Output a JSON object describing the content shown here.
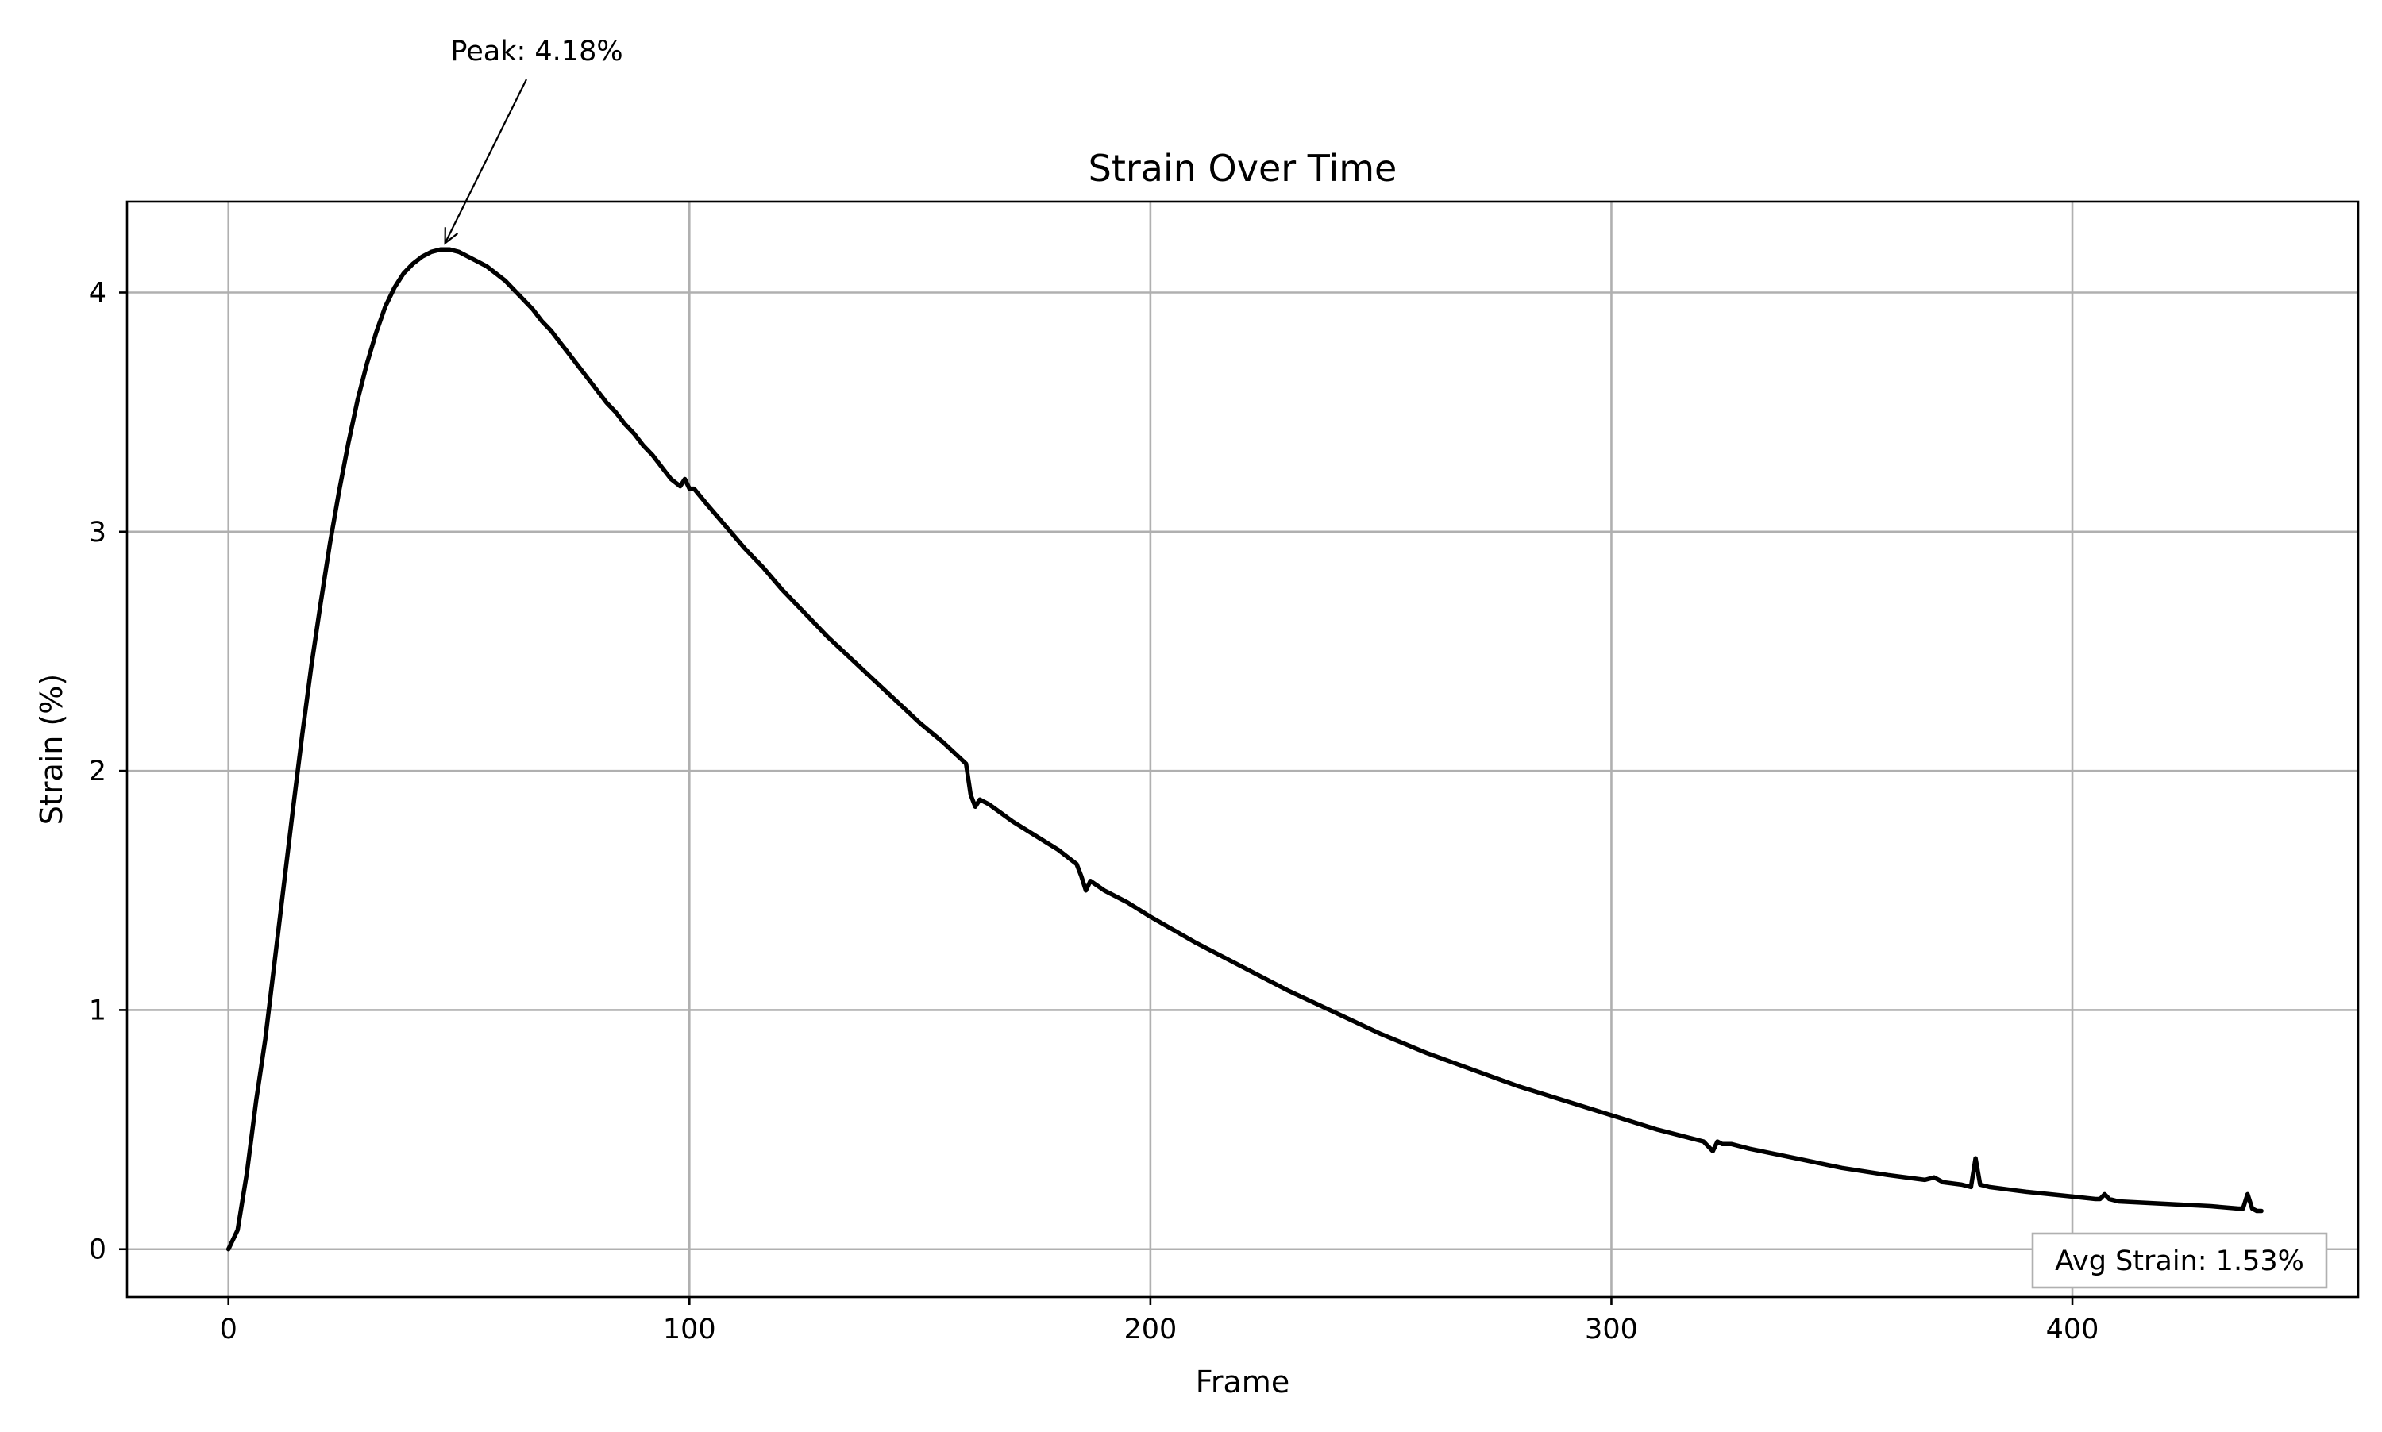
{
  "chart_data": {
    "type": "line",
    "title": "Strain Over Time",
    "xlabel": "Frame",
    "ylabel": "Strain (%)",
    "xlim": [
      -22,
      462
    ],
    "ylim": [
      -0.2,
      4.38
    ],
    "x_ticks": [
      0,
      100,
      200,
      300,
      400
    ],
    "y_ticks": [
      0,
      1,
      2,
      3,
      4
    ],
    "x_tick_labels": [
      "0",
      "100",
      "200",
      "300",
      "400"
    ],
    "y_tick_labels": [
      "0",
      "1",
      "2",
      "3",
      "4"
    ],
    "grid": true,
    "series": [
      {
        "color": "#000000",
        "x": [
          0,
          2,
          4,
          6,
          8,
          10,
          12,
          14,
          16,
          18,
          20,
          22,
          24,
          26,
          28,
          30,
          32,
          34,
          36,
          38,
          40,
          42,
          44,
          46,
          48,
          50,
          52,
          54,
          56,
          58,
          60,
          62,
          64,
          66,
          68,
          70,
          72,
          74,
          76,
          78,
          80,
          82,
          84,
          86,
          88,
          90,
          92,
          94,
          96,
          98,
          99,
          100,
          101,
          104,
          108,
          112,
          116,
          120,
          125,
          130,
          135,
          140,
          145,
          150,
          155,
          160,
          161,
          162,
          163,
          165,
          170,
          175,
          180,
          184,
          185,
          186,
          187,
          190,
          195,
          200,
          210,
          220,
          230,
          240,
          250,
          260,
          270,
          280,
          290,
          300,
          310,
          320,
          322,
          323,
          324,
          326,
          330,
          340,
          350,
          360,
          368,
          370,
          372,
          376,
          378,
          379,
          380,
          382,
          390,
          400,
          405,
          406,
          407,
          408,
          410,
          420,
          430,
          436,
          437,
          438,
          439,
          440,
          441
        ],
        "y": [
          0.0,
          0.08,
          0.32,
          0.62,
          0.88,
          1.2,
          1.52,
          1.84,
          2.15,
          2.44,
          2.7,
          2.95,
          3.17,
          3.37,
          3.55,
          3.7,
          3.83,
          3.94,
          4.02,
          4.08,
          4.12,
          4.15,
          4.17,
          4.18,
          4.18,
          4.17,
          4.15,
          4.13,
          4.11,
          4.08,
          4.05,
          4.01,
          3.97,
          3.93,
          3.88,
          3.84,
          3.79,
          3.74,
          3.69,
          3.64,
          3.59,
          3.54,
          3.5,
          3.45,
          3.41,
          3.36,
          3.32,
          3.27,
          3.22,
          3.19,
          3.22,
          3.18,
          3.18,
          3.11,
          3.02,
          2.93,
          2.85,
          2.76,
          2.66,
          2.56,
          2.47,
          2.38,
          2.29,
          2.2,
          2.12,
          2.03,
          1.9,
          1.85,
          1.88,
          1.86,
          1.79,
          1.73,
          1.67,
          1.61,
          1.56,
          1.5,
          1.54,
          1.5,
          1.45,
          1.39,
          1.28,
          1.18,
          1.08,
          0.99,
          0.9,
          0.82,
          0.75,
          0.68,
          0.62,
          0.56,
          0.5,
          0.45,
          0.41,
          0.45,
          0.44,
          0.44,
          0.42,
          0.38,
          0.34,
          0.31,
          0.29,
          0.3,
          0.28,
          0.27,
          0.26,
          0.38,
          0.27,
          0.26,
          0.24,
          0.22,
          0.21,
          0.21,
          0.23,
          0.21,
          0.2,
          0.19,
          0.18,
          0.17,
          0.17,
          0.23,
          0.17,
          0.16,
          0.16
        ]
      }
    ],
    "annotations": [
      {
        "text": "Peak: 4.18%",
        "x": 47,
        "y": 4.18,
        "arrow": true
      },
      {
        "text": "Avg Strain: 1.53%",
        "placement": "bottom-right",
        "boxed": true
      }
    ]
  }
}
